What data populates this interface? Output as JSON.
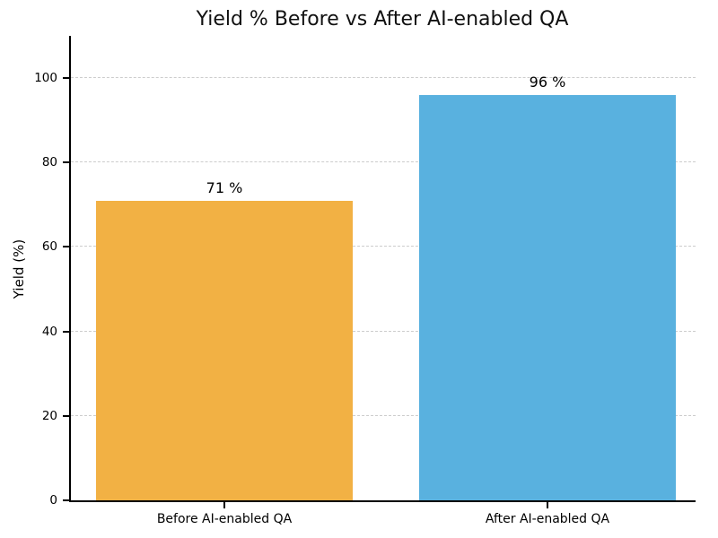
{
  "chart_data": {
    "type": "bar",
    "title": "Yield % Before vs After AI-enabled QA",
    "xlabel": "",
    "ylabel": "Yield (%)",
    "categories": [
      "Before AI-enabled QA",
      "After AI-enabled QA"
    ],
    "values": [
      71,
      96
    ],
    "value_labels": [
      "71 %",
      "96 %"
    ],
    "bar_colors": [
      "#F2B144",
      "#59B1DF"
    ],
    "yticks": [
      0,
      20,
      40,
      60,
      80,
      100
    ],
    "ylim": [
      0,
      110
    ],
    "grid": "horizontal dashed gridlines at y ticks",
    "grid_color": "#cccccc",
    "axis_color": "#000000",
    "background_color": "#ffffff",
    "legend": "none"
  }
}
